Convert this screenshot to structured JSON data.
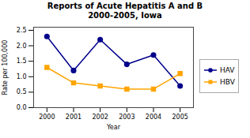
{
  "chart_data": {
    "type": "line",
    "title": "Reports of Acute Hepatitis A and B\n2000-2005, Iowa",
    "xlabel": "Year",
    "ylabel": "Rate per 100,000",
    "x": [
      2000,
      2001,
      2002,
      2003,
      2004,
      2005
    ],
    "series": [
      {
        "name": "HAV",
        "color": "#00008B",
        "marker": "circle",
        "values": [
          2.3,
          1.2,
          2.2,
          1.4,
          1.7,
          0.7
        ]
      },
      {
        "name": "HBV",
        "color": "#FFA500",
        "marker": "square",
        "values": [
          1.3,
          0.8,
          0.7,
          0.6,
          0.6,
          1.1
        ]
      }
    ],
    "xlim": [
      1999.5,
      2005.5
    ],
    "xticks": [
      2000,
      2001,
      2002,
      2003,
      2004,
      2005
    ],
    "ylim": [
      0,
      2.6
    ],
    "yticks": [
      {
        "value": 0,
        "label": "0.0"
      },
      0.5,
      {
        "value": 1,
        "label": "1.0"
      },
      1.5,
      {
        "value": 2,
        "label": "2.0"
      },
      2.5
    ],
    "grid": false,
    "legend": "right"
  }
}
